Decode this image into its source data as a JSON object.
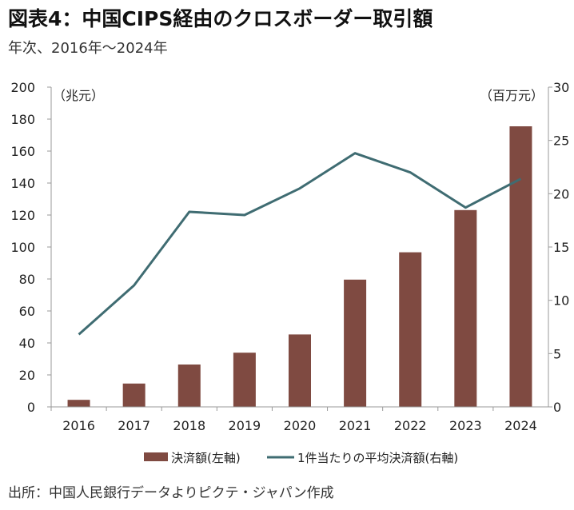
{
  "header": {
    "title": "図表4：中国CIPS経由のクロスボーダー取引額",
    "subtitle": "年次、2016年～2024年"
  },
  "footer": {
    "source": "出所：中国人民銀行データよりピクテ・ジャパン作成"
  },
  "colors": {
    "bar": "#7f4a41",
    "line": "#3f6c72",
    "axis": "#999999",
    "text": "#222222"
  },
  "chart_data": {
    "type": "bar",
    "categories": [
      "2016",
      "2017",
      "2018",
      "2019",
      "2020",
      "2021",
      "2022",
      "2023",
      "2024"
    ],
    "series": [
      {
        "name": "決済額(左軸)",
        "type": "bar",
        "axis": "left",
        "values": [
          4.4,
          14.6,
          26.5,
          33.9,
          45.3,
          79.6,
          96.7,
          123.1,
          175.5
        ]
      },
      {
        "name": "1件当たりの平均決済額(右軸)",
        "type": "line",
        "axis": "right",
        "values": [
          6.8,
          11.4,
          18.3,
          18.0,
          20.5,
          23.8,
          22.0,
          18.7,
          21.4
        ]
      }
    ],
    "left_axis": {
      "label": "（兆元）",
      "ylim": [
        0,
        200
      ],
      "ticks": [
        "0",
        "20",
        "40",
        "60",
        "80",
        "100",
        "120",
        "140",
        "160",
        "180",
        "200"
      ]
    },
    "right_axis": {
      "label": "（百万元）",
      "ylim": [
        0,
        30
      ],
      "ticks": [
        "0",
        "5",
        "10",
        "15",
        "20",
        "25",
        "30"
      ]
    },
    "grid": false,
    "legend_position": "bottom"
  }
}
